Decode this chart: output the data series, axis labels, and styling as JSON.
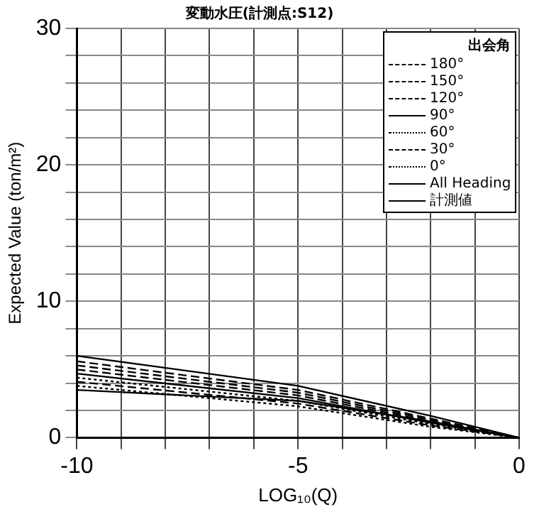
{
  "chart_data": {
    "type": "line",
    "title": "変動水圧(計測点:S12)",
    "xlabel": "LOG₁₀(Q)",
    "ylabel": "Expected Value (ton/m²)",
    "legend_title": "出会角",
    "x": [
      -10,
      -5,
      -2,
      0
    ],
    "series": [
      {
        "name": "180°",
        "color": "#000000",
        "line_style": "dashed",
        "values": [
          5.6,
          3.5,
          1.4,
          0
        ]
      },
      {
        "name": "150°",
        "color": "#000000",
        "line_style": "dashed",
        "values": [
          5.3,
          3.3,
          1.3,
          0
        ]
      },
      {
        "name": "120°",
        "color": "#000000",
        "line_style": "dashed",
        "values": [
          5.0,
          3.1,
          1.2,
          0
        ]
      },
      {
        "name": "90°",
        "color": "#000000",
        "line_style": "solid",
        "values": [
          4.7,
          2.9,
          1.1,
          0
        ]
      },
      {
        "name": "60°",
        "color": "#000000",
        "line_style": "dotted",
        "values": [
          4.4,
          2.7,
          1.0,
          0
        ]
      },
      {
        "name": "30°",
        "color": "#000000",
        "line_style": "dashed",
        "values": [
          4.1,
          2.5,
          0.9,
          0
        ]
      },
      {
        "name": "0°",
        "color": "#000000",
        "line_style": "dotted",
        "values": [
          3.8,
          2.3,
          0.8,
          0
        ]
      },
      {
        "name": "All Heading",
        "color": "#000000",
        "line_style": "solid",
        "values": [
          6.0,
          3.8,
          1.6,
          0
        ]
      },
      {
        "name": "計測値",
        "color": "#000000",
        "line_style": "solid",
        "values": [
          3.5,
          2.7,
          1.2,
          0
        ]
      }
    ],
    "xlim": [
      -10,
      0
    ],
    "xticks": [
      -10,
      {
        "value": -9,
        "label": null
      },
      {
        "value": -8,
        "label": null
      },
      {
        "value": -7,
        "label": null
      },
      {
        "value": -6,
        "label": null
      },
      -5,
      {
        "value": -4,
        "label": null
      },
      {
        "value": -3,
        "label": null
      },
      {
        "value": -2,
        "label": null
      },
      {
        "value": -1,
        "label": null
      },
      0
    ],
    "ylim": [
      0,
      30
    ],
    "yticks": [
      0,
      {
        "value": 2,
        "label": null
      },
      {
        "value": 4,
        "label": null
      },
      {
        "value": 6,
        "label": null
      },
      {
        "value": 8,
        "label": null
      },
      10,
      {
        "value": 12,
        "label": null
      },
      {
        "value": 14,
        "label": null
      },
      {
        "value": 16,
        "label": null
      },
      {
        "value": 18,
        "label": null
      },
      20,
      {
        "value": 22,
        "label": null
      },
      {
        "value": 24,
        "label": null
      },
      {
        "value": 26,
        "label": null
      },
      {
        "value": 28,
        "label": null
      },
      30
    ],
    "grid": true,
    "legend": "top right",
    "marker": "none"
  }
}
